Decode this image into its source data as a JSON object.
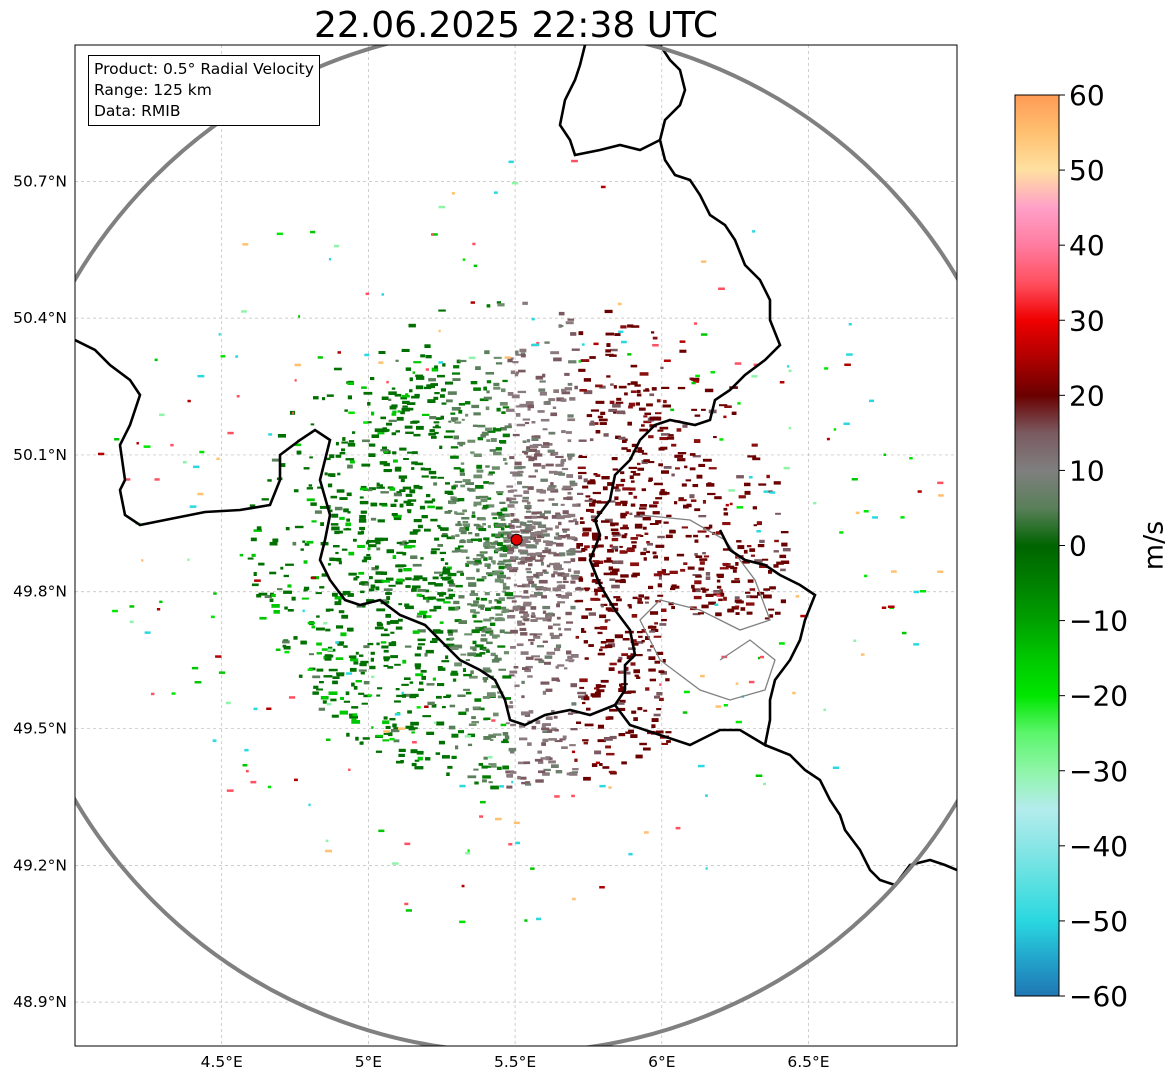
{
  "title": "22.06.2025 22:38 UTC",
  "info": {
    "product": "Product: 0.5° Radial Velocity",
    "range": "Range: 125 km",
    "data": "Data: RMIB"
  },
  "map": {
    "lat_ticks": [
      "50.7°N",
      "50.4°N",
      "50.1°N",
      "49.8°N",
      "49.5°N",
      "49.2°N",
      "48.9°N"
    ],
    "lon_ticks": [
      "4.5°E",
      "5°E",
      "5.5°E",
      "6°E",
      "6.5°E"
    ],
    "radar_site": {
      "lon": 5.505,
      "lat": 49.914
    },
    "range_ring_km": 125,
    "colors": {
      "border": "#000000",
      "subdivision": "#808080",
      "ring": "#808080",
      "site": "#e00000"
    }
  },
  "colorbar": {
    "label": "m/s",
    "ticks": [
      "60",
      "50",
      "40",
      "30",
      "20",
      "10",
      "0",
      "−10",
      "−20",
      "−30",
      "−40",
      "−50",
      "−60"
    ],
    "min": -60,
    "max": 60,
    "stops": [
      "#1f77b4",
      "#22a5cc",
      "#2ad8e0",
      "#5ae0e0",
      "#8ae6e6",
      "#b4ecec",
      "#8ef5a8",
      "#5cf56c",
      "#00e600",
      "#00c800",
      "#00a000",
      "#008000",
      "#006400",
      "#5a7f5a",
      "#7f7f7f",
      "#7a5a60",
      "#6a0000",
      "#b00000",
      "#f00000",
      "#ff5060",
      "#ff7ca0",
      "#ffa0c8",
      "#ffe0a0",
      "#ffc070",
      "#ff9a55"
    ]
  }
}
